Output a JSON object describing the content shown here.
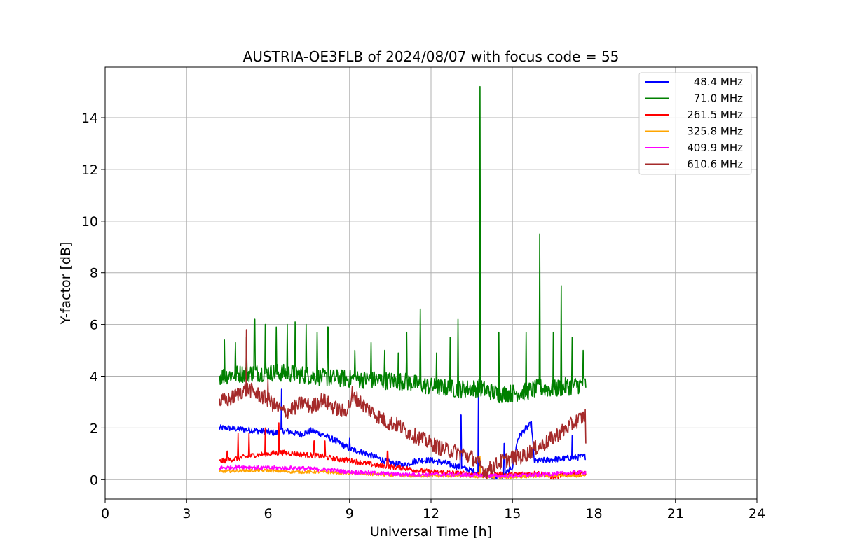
{
  "chart_data": {
    "type": "line",
    "title": "AUSTRIA-OE3FLB of 2024/08/07 with focus code = 55",
    "xlabel": "Universal Time [h]",
    "ylabel": "Y-factor [dB]",
    "xlim": [
      0,
      24
    ],
    "ylim": [
      -0.75,
      15.95
    ],
    "xticks": [
      0,
      3,
      6,
      9,
      12,
      15,
      18,
      21,
      24
    ],
    "yticks": [
      0,
      2,
      4,
      6,
      8,
      10,
      12,
      14
    ],
    "grid": true,
    "legend_position": "top-right",
    "series": [
      {
        "name": "48.4 MHz",
        "color": "#0000ff",
        "x": [
          4.2,
          4.5,
          5.0,
          5.5,
          6.0,
          6.3,
          6.5,
          6.8,
          7.2,
          7.6,
          8.0,
          8.5,
          9.0,
          9.5,
          10.0,
          10.5,
          11.0,
          11.5,
          12.0,
          12.5,
          13.0,
          13.5,
          13.8,
          14.0,
          14.3,
          14.7,
          15.0,
          15.2,
          15.5,
          15.7,
          15.8,
          16.2,
          16.8,
          17.2,
          17.7
        ],
        "y": [
          2.0,
          2.0,
          1.95,
          1.9,
          1.85,
          1.8,
          1.9,
          1.85,
          1.75,
          1.9,
          1.75,
          1.5,
          1.2,
          1.05,
          0.85,
          0.65,
          0.55,
          0.75,
          0.75,
          0.65,
          0.5,
          0.35,
          0.25,
          0.15,
          0.1,
          0.15,
          0.5,
          1.6,
          2.0,
          2.15,
          0.7,
          0.75,
          0.8,
          0.85,
          0.9
        ],
        "spikes": [
          [
            6.5,
            3.5
          ],
          [
            8.5,
            1.4
          ],
          [
            9.0,
            1.6
          ],
          [
            13.1,
            2.5
          ],
          [
            13.75,
            3.5
          ],
          [
            14.7,
            1.4
          ],
          [
            17.2,
            1.7
          ]
        ]
      },
      {
        "name": "71.0 MHz",
        "color": "#008000",
        "x": [
          4.2,
          5.0,
          6.0,
          7.0,
          8.0,
          9.0,
          10.0,
          11.0,
          12.0,
          13.0,
          13.8,
          14.5,
          15.0,
          15.5,
          16.0,
          16.5,
          17.0,
          17.7
        ],
        "y": [
          4.0,
          4.1,
          4.15,
          4.1,
          3.95,
          3.9,
          3.85,
          3.8,
          3.6,
          3.5,
          3.55,
          3.3,
          3.35,
          3.4,
          3.55,
          3.5,
          3.6,
          3.7
        ],
        "spikes": [
          [
            4.4,
            5.4
          ],
          [
            4.8,
            5.3
          ],
          [
            5.2,
            5.5
          ],
          [
            5.5,
            6.2
          ],
          [
            5.9,
            6.0
          ],
          [
            6.3,
            5.9
          ],
          [
            6.7,
            6.0
          ],
          [
            7.0,
            6.1
          ],
          [
            7.4,
            6.0
          ],
          [
            7.8,
            5.7
          ],
          [
            8.2,
            5.9
          ],
          [
            9.2,
            5.0
          ],
          [
            9.8,
            5.3
          ],
          [
            10.3,
            5.0
          ],
          [
            10.8,
            4.9
          ],
          [
            11.1,
            5.7
          ],
          [
            11.6,
            6.6
          ],
          [
            12.2,
            4.9
          ],
          [
            12.7,
            5.5
          ],
          [
            13.0,
            6.2
          ],
          [
            13.8,
            15.2
          ],
          [
            14.5,
            5.7
          ],
          [
            15.5,
            5.7
          ],
          [
            16.0,
            9.5
          ],
          [
            16.5,
            5.7
          ],
          [
            16.8,
            7.5
          ],
          [
            17.2,
            5.5
          ],
          [
            17.6,
            5.0
          ]
        ]
      },
      {
        "name": "261.5 MHz",
        "color": "#ff0000",
        "x": [
          4.2,
          5.0,
          5.5,
          6.0,
          6.5,
          7.0,
          7.5,
          8.0,
          8.5,
          9.0,
          9.5,
          10.0,
          10.5,
          11.0,
          11.5,
          12.0,
          13.0,
          14.0,
          15.0,
          16.0,
          16.5,
          17.0,
          17.7
        ],
        "y": [
          0.7,
          0.85,
          0.95,
          1.0,
          1.05,
          1.0,
          0.95,
          0.9,
          0.8,
          0.75,
          0.65,
          0.55,
          0.5,
          0.45,
          0.35,
          0.3,
          0.25,
          0.2,
          0.2,
          0.25,
          0.1,
          0.2,
          0.25
        ],
        "spikes": [
          [
            4.5,
            1.1
          ],
          [
            4.9,
            1.8
          ],
          [
            5.3,
            1.8
          ],
          [
            5.9,
            2.0
          ],
          [
            6.4,
            2.2
          ],
          [
            7.7,
            1.5
          ],
          [
            8.1,
            1.5
          ],
          [
            10.4,
            1.1
          ]
        ]
      },
      {
        "name": "325.8 MHz",
        "color": "#ffa500",
        "x": [
          4.2,
          5.0,
          6.0,
          7.0,
          8.0,
          9.0,
          10.0,
          11.0,
          12.0,
          13.0,
          14.0,
          15.0,
          16.0,
          17.0,
          17.7
        ],
        "y": [
          0.3,
          0.35,
          0.35,
          0.3,
          0.3,
          0.25,
          0.2,
          0.15,
          0.15,
          0.15,
          0.1,
          0.1,
          0.15,
          0.15,
          0.15
        ],
        "spikes": [
          [
            13.8,
            0.9
          ]
        ]
      },
      {
        "name": "409.9 MHz",
        "color": "#ff00ff",
        "x": [
          4.2,
          5.0,
          6.0,
          7.0,
          8.0,
          9.0,
          10.0,
          11.0,
          12.0,
          13.0,
          14.0,
          15.0,
          16.0,
          17.0,
          17.7
        ],
        "y": [
          0.45,
          0.5,
          0.45,
          0.45,
          0.4,
          0.3,
          0.25,
          0.2,
          0.2,
          0.2,
          0.15,
          0.15,
          0.2,
          0.25,
          0.3
        ],
        "spikes": []
      },
      {
        "name": "610.6 MHz",
        "color": "#a52a2a",
        "x": [
          4.2,
          4.6,
          5.0,
          5.3,
          5.6,
          6.0,
          6.3,
          6.6,
          7.0,
          7.3,
          7.6,
          8.0,
          8.4,
          8.8,
          9.2,
          9.6,
          10.0,
          10.4,
          10.8,
          11.2,
          11.6,
          12.0,
          12.4,
          12.8,
          13.2,
          13.6,
          14.0,
          14.2,
          14.6,
          15.0,
          15.4,
          15.8,
          16.2,
          16.6,
          17.0,
          17.4,
          17.7
        ],
        "y": [
          3.0,
          3.1,
          3.4,
          3.5,
          3.3,
          3.1,
          2.8,
          2.6,
          2.8,
          3.0,
          2.8,
          3.1,
          2.8,
          2.6,
          3.2,
          2.8,
          2.5,
          2.2,
          2.1,
          1.8,
          1.6,
          1.4,
          1.2,
          1.1,
          1.0,
          0.8,
          0.3,
          0.45,
          0.7,
          0.85,
          0.9,
          1.2,
          1.4,
          1.7,
          2.0,
          2.3,
          2.5
        ],
        "spikes": [
          [
            5.2,
            5.8
          ],
          [
            6.0,
            3.9
          ],
          [
            9.1,
            3.6
          ],
          [
            17.7,
            1.4
          ]
        ]
      }
    ]
  }
}
